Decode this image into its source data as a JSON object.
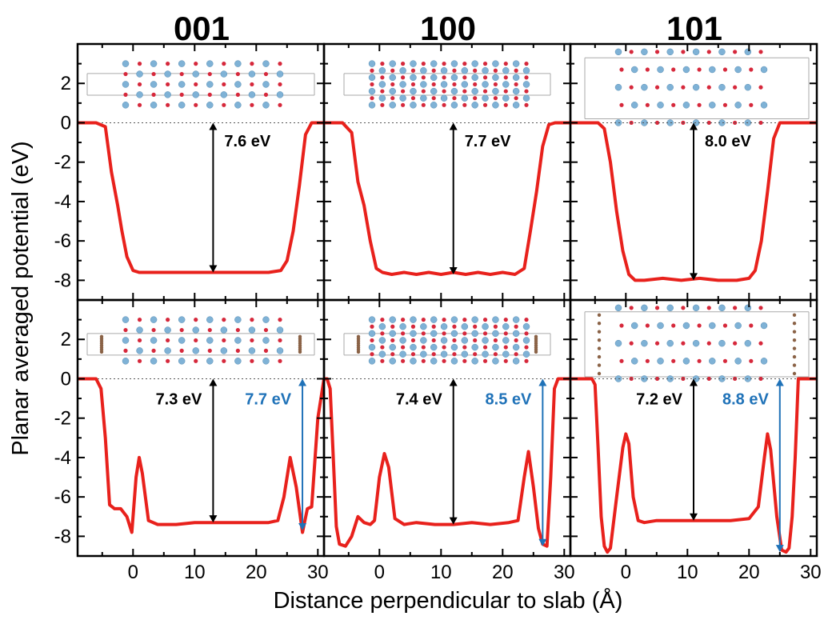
{
  "figure": {
    "xlabel": "Distance perpendicular to slab (Å)",
    "ylabel": "Planar averaged potential (eV)",
    "column_titles": [
      "001",
      "100",
      "101"
    ]
  },
  "colors": {
    "potential": "#e8211c",
    "gap_black": "#000000",
    "gap_blue": "#1f72b8",
    "oxygen": "#d6283b",
    "metal": "#7fb2d6",
    "adsorbate": "#8a6246"
  },
  "chart_data": {
    "type": "line",
    "layout": "2x3 panel grid",
    "xlim": [
      -9,
      31
    ],
    "ylim": [
      -9,
      4
    ],
    "x_ticks": [
      0,
      10,
      20,
      30
    ],
    "y_ticks": [
      2,
      0,
      -2,
      -4,
      -6,
      -8
    ],
    "x_tick_labels": [
      "0",
      "10",
      "20",
      "30"
    ],
    "y_tick_labels": [
      "2",
      "0",
      "-2",
      "-4",
      "-6",
      "-8"
    ],
    "vacuum_level": 0,
    "panels": [
      {
        "row": 0,
        "col": 0,
        "surface": "001",
        "series": [
          {
            "x": [
              -9,
              -6,
              -4.5,
              -3.5,
              -2.5,
              -1.8,
              -1,
              0,
              1,
              3,
              6,
              10,
              14,
              18,
              22,
              24,
              25,
              26,
              27,
              28,
              29,
              30,
              31
            ],
            "y": [
              0,
              0,
              -0.2,
              -2.5,
              -4.2,
              -5.5,
              -6.8,
              -7.5,
              -7.6,
              -7.6,
              -7.6,
              -7.6,
              -7.6,
              -7.6,
              -7.6,
              -7.5,
              -7.0,
              -5.5,
              -3.2,
              -0.6,
              0,
              0,
              0
            ]
          }
        ],
        "gaps": [
          {
            "label": "7.6 eV",
            "x": 13,
            "from": 0,
            "to": -7.6,
            "color": "black"
          }
        ]
      },
      {
        "row": 0,
        "col": 1,
        "surface": "100",
        "series": [
          {
            "x": [
              -9,
              -6,
              -4.5,
              -3.5,
              -2.5,
              -1.5,
              -0.5,
              0.5,
              2,
              4,
              6,
              8,
              10,
              12,
              14,
              16,
              18,
              20,
              22,
              23.5,
              24.5,
              25.5,
              26.5,
              27.5,
              28.5,
              31
            ],
            "y": [
              0,
              0,
              -0.5,
              -3.0,
              -4.2,
              -6.0,
              -7.4,
              -7.6,
              -7.7,
              -7.6,
              -7.7,
              -7.6,
              -7.7,
              -7.6,
              -7.7,
              -7.6,
              -7.7,
              -7.6,
              -7.7,
              -7.4,
              -5.5,
              -3.5,
              -1.2,
              -0.1,
              0,
              0
            ]
          }
        ],
        "gaps": [
          {
            "label": "7.7 eV",
            "x": 12,
            "from": 0,
            "to": -7.7,
            "color": "black"
          }
        ]
      },
      {
        "row": 0,
        "col": 2,
        "surface": "101",
        "series": [
          {
            "x": [
              -9,
              -4.5,
              -3.5,
              -2.5,
              -1.5,
              -0.5,
              0.5,
              1.5,
              3,
              6,
              9,
              12,
              15,
              18,
              20,
              21,
              22,
              23,
              24,
              25,
              31
            ],
            "y": [
              0,
              0,
              -0.3,
              -2.0,
              -4.5,
              -6.5,
              -7.7,
              -8.0,
              -8.0,
              -7.9,
              -8.0,
              -7.9,
              -8.0,
              -8.0,
              -7.9,
              -7.5,
              -6.0,
              -3.5,
              -0.8,
              0,
              0
            ]
          }
        ],
        "gaps": [
          {
            "label": "8.0 eV",
            "x": 11,
            "from": 0,
            "to": -8.0,
            "color": "black"
          }
        ]
      },
      {
        "row": 1,
        "col": 0,
        "surface": "001",
        "series": [
          {
            "x": [
              -9,
              -6,
              -5.2,
              -4.5,
              -3.8,
              -3,
              -2,
              -1,
              -0.2,
              0.5,
              1,
              1.5,
              2.5,
              4,
              7,
              10,
              14,
              18,
              22,
              23.5,
              24.5,
              25.5,
              26.5,
              27.5,
              28.3,
              29,
              30,
              31
            ],
            "y": [
              0,
              0,
              -0.5,
              -3.0,
              -6.4,
              -6.6,
              -6.6,
              -7.0,
              -7.8,
              -5.0,
              -4.0,
              -4.8,
              -7.2,
              -7.4,
              -7.4,
              -7.3,
              -7.3,
              -7.3,
              -7.3,
              -7.2,
              -6.0,
              -4.0,
              -5.5,
              -7.8,
              -6.6,
              -6.5,
              -2.0,
              0
            ]
          }
        ],
        "gaps": [
          {
            "label": "7.3 eV",
            "x": 13,
            "from": 0,
            "to": -7.3,
            "color": "black"
          },
          {
            "label": "7.7 eV",
            "x": 27.5,
            "from": 0,
            "to": -7.7,
            "color": "blue"
          }
        ]
      },
      {
        "row": 1,
        "col": 1,
        "surface": "100",
        "series": [
          {
            "x": [
              -9,
              -8.5,
              -8,
              -7.5,
              -7,
              -6.5,
              -5.5,
              -4.5,
              -3.5,
              -2.5,
              -1.5,
              -0.8,
              0,
              0.8,
              1.5,
              2.5,
              4,
              6,
              9,
              12,
              15,
              18,
              21,
              22.5,
              23.5,
              24.2,
              25,
              25.8,
              26.5,
              27.2,
              27.8,
              28.4,
              29,
              31
            ],
            "y": [
              0,
              0,
              -0.5,
              -4.0,
              -7.5,
              -8.4,
              -8.5,
              -8.0,
              -7.0,
              -7.3,
              -7.4,
              -7.2,
              -5.0,
              -3.8,
              -4.5,
              -7.1,
              -7.4,
              -7.3,
              -7.4,
              -7.4,
              -7.3,
              -7.4,
              -7.3,
              -7.2,
              -5.0,
              -3.7,
              -5.5,
              -7.6,
              -8.4,
              -8.5,
              -5.0,
              -0.5,
              0,
              0
            ]
          }
        ],
        "gaps": [
          {
            "label": "7.4 eV",
            "x": 12,
            "from": 0,
            "to": -7.4,
            "color": "black"
          },
          {
            "label": "8.5 eV",
            "x": 26.5,
            "from": 0,
            "to": -8.5,
            "color": "blue"
          }
        ]
      },
      {
        "row": 1,
        "col": 2,
        "surface": "101",
        "series": [
          {
            "x": [
              -9,
              -5.5,
              -5,
              -4.5,
              -4,
              -3.5,
              -3,
              -2.5,
              -1.5,
              -0.5,
              0,
              0.5,
              1.2,
              2,
              3,
              5,
              8,
              11,
              14,
              17,
              20,
              21.5,
              22.5,
              23,
              23.5,
              24.5,
              25.3,
              26,
              26.5,
              27,
              27.5,
              28,
              31
            ],
            "y": [
              0,
              0,
              -0.3,
              -3.5,
              -7.0,
              -8.5,
              -8.8,
              -8.6,
              -6.0,
              -3.5,
              -2.8,
              -3.3,
              -6.0,
              -7.2,
              -7.3,
              -7.2,
              -7.2,
              -7.2,
              -7.2,
              -7.2,
              -7.1,
              -6.5,
              -4.0,
              -2.8,
              -3.6,
              -7.0,
              -8.7,
              -8.8,
              -8.6,
              -7.0,
              -4.0,
              0,
              0
            ]
          }
        ],
        "gaps": [
          {
            "label": "7.2 eV",
            "x": 11,
            "from": 0,
            "to": -7.2,
            "color": "black"
          },
          {
            "label": "8.8 eV",
            "x": 25,
            "from": 0,
            "to": -8.8,
            "color": "blue"
          }
        ]
      }
    ]
  }
}
